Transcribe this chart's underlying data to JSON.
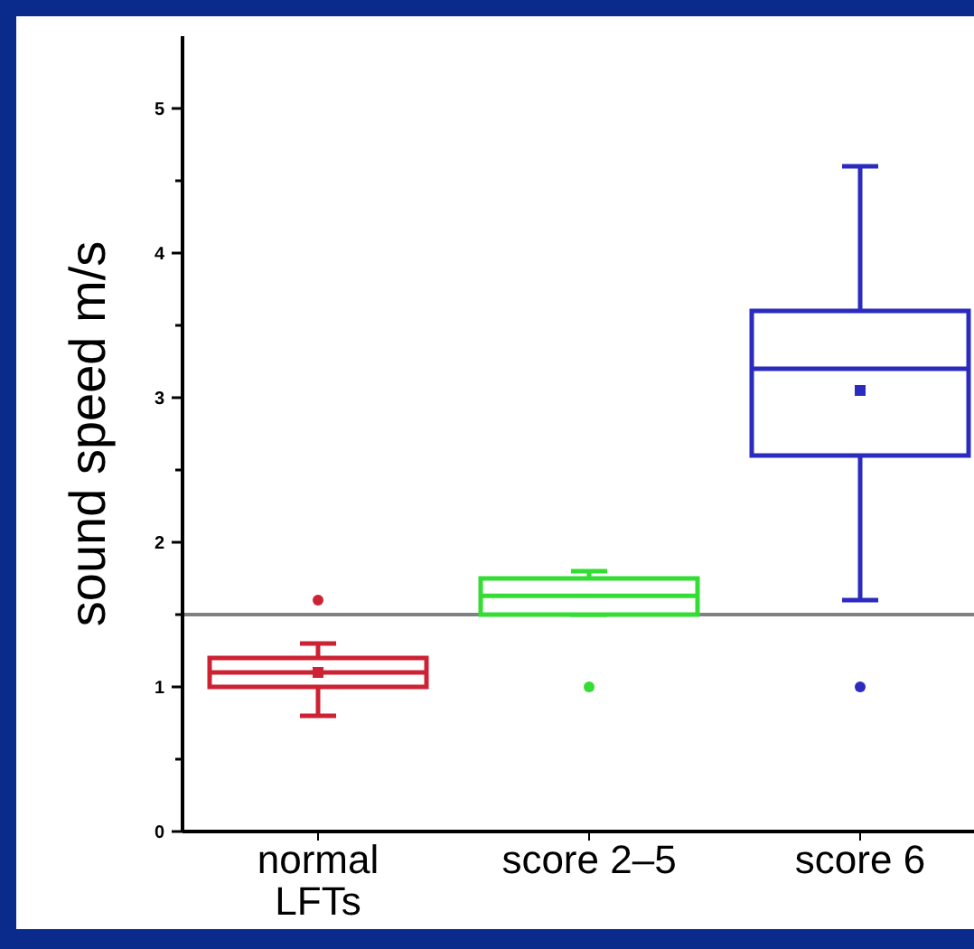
{
  "chart_data": {
    "type": "box",
    "ylabel": "sound speed m/s",
    "categories": [
      "normal LFTs",
      "score 2–5",
      "score 6"
    ],
    "boxes": [
      {
        "low": 0.8,
        "q1": 1.0,
        "median": 1.1,
        "q3": 1.2,
        "high": 1.3,
        "mean": 1.1,
        "outliers": [
          1.6
        ]
      },
      {
        "low": 1.5,
        "q1": 1.5,
        "median": 1.63,
        "q3": 1.75,
        "high": 1.8,
        "outliers": [
          1.0
        ]
      },
      {
        "low": 1.6,
        "q1": 2.6,
        "median": 3.2,
        "q3": 3.6,
        "high": 4.6,
        "mean": 3.05,
        "outliers": [
          1.0
        ]
      }
    ],
    "colors": [
      "#cc2233",
      "#33dd33",
      "#2b2bc0"
    ],
    "ylim": [
      0,
      5.5
    ],
    "yticks": [
      0,
      {
        "value": 0.5,
        "label": null
      },
      1,
      {
        "value": 1.5,
        "label": null
      },
      2,
      {
        "value": 2.5,
        "label": null
      },
      3,
      {
        "value": 3.5,
        "label": null
      },
      4,
      {
        "value": 4.5,
        "label": null
      },
      5
    ],
    "ref_lines": [
      {
        "axis": "y",
        "value": 1.5,
        "color": "#808080"
      }
    ],
    "grid": false
  }
}
